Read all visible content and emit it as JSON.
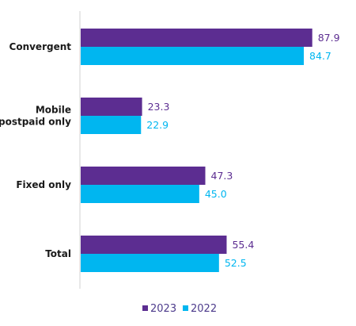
{
  "chart_data": {
    "type": "bar",
    "orientation": "horizontal",
    "categories": [
      "Convergent",
      "Mobile postpaid only",
      "Fixed only",
      "Total"
    ],
    "category_lines": [
      [
        "Convergent"
      ],
      [
        "Mobile",
        "postpaid only"
      ],
      [
        "Fixed only"
      ],
      [
        "Total"
      ]
    ],
    "series": [
      {
        "name": "2023",
        "values": [
          87.9,
          23.3,
          47.3,
          55.4
        ],
        "labels": [
          "87.9",
          "23.3",
          "47.3",
          "55.4"
        ],
        "color": "#5c2d91"
      },
      {
        "name": "2022",
        "values": [
          84.7,
          22.9,
          45.0,
          52.5
        ],
        "labels": [
          "84.7",
          "22.9",
          "45.0",
          "52.5"
        ],
        "color": "#00b6f0"
      }
    ],
    "xlim": [
      0,
      100
    ],
    "legend_position": "bottom-center",
    "legend_marker": "■",
    "title": "",
    "xlabel": "",
    "ylabel": "",
    "grid": false
  }
}
